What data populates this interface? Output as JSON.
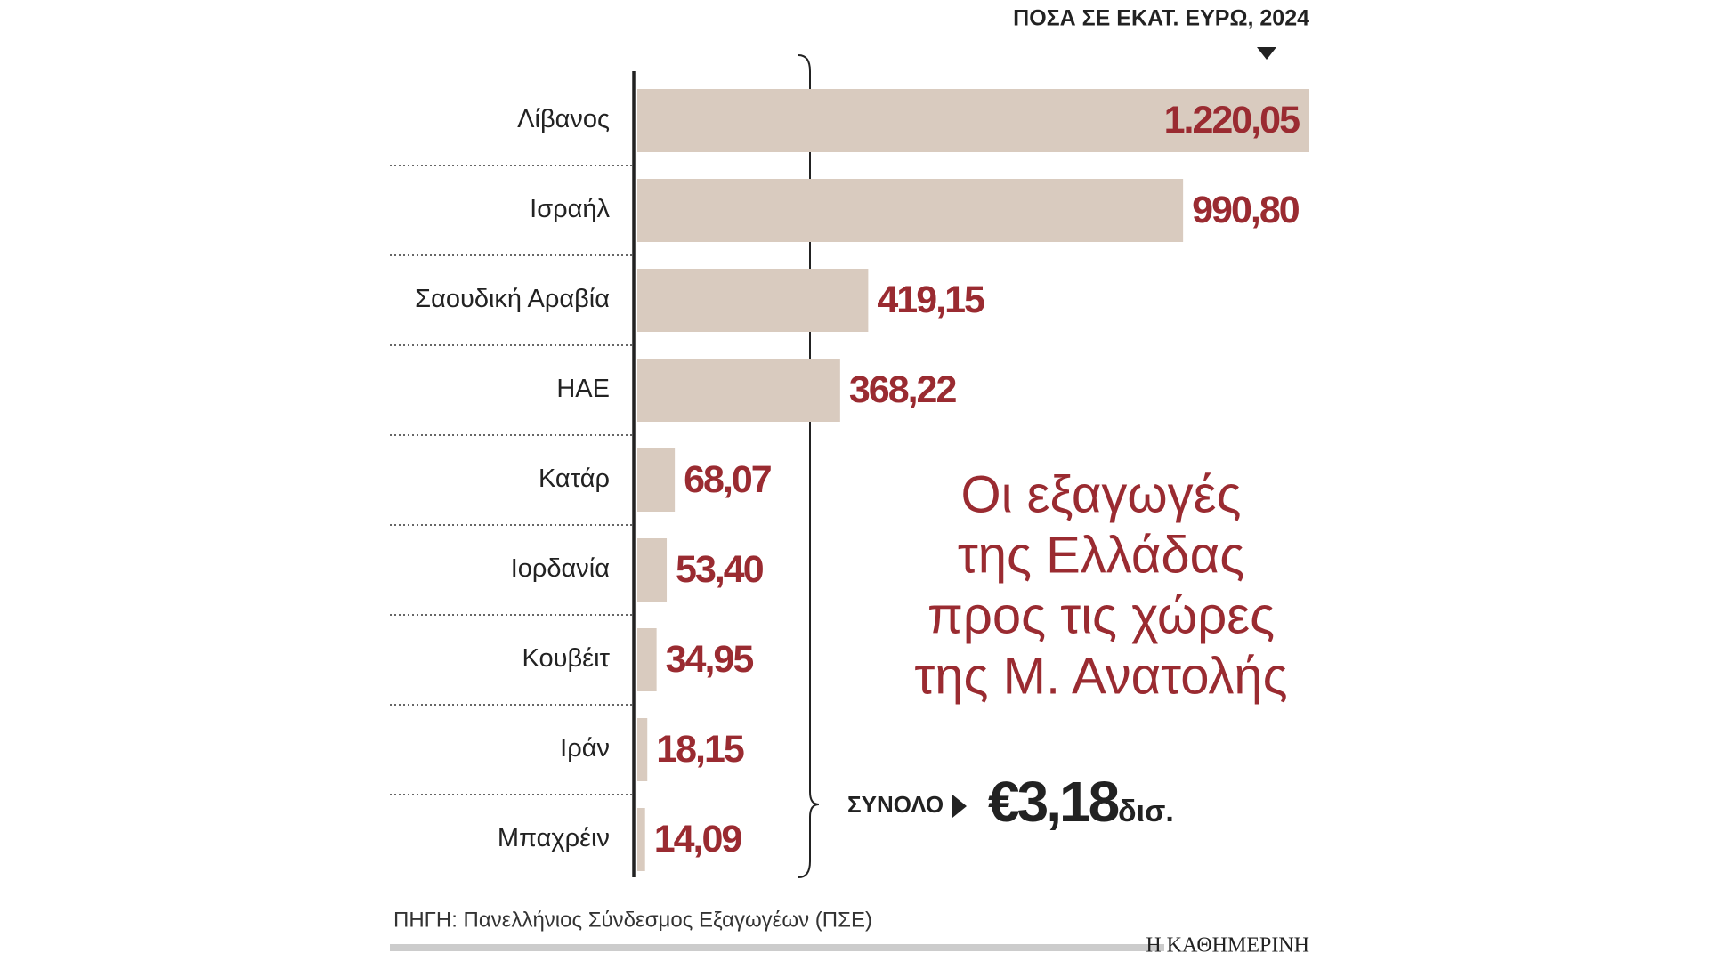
{
  "chart_data": {
    "type": "hbar",
    "title": [
      "Οι εξαγωγές",
      "της Ελλάδας",
      "προς τις χώρες",
      "της Μ. Ανατολής"
    ],
    "unit_label": "ΠΟΣΑ ΣΕ ΕΚΑΤ. ΕΥΡΩ, 2024",
    "categories": [
      "Λίβανος",
      "Ισραήλ",
      "Σαουδική Αραβία",
      "ΗΑΕ",
      "Κατάρ",
      "Ιορδανία",
      "Κουβέιτ",
      "Ιράν",
      "Μπαχρέιν"
    ],
    "values": [
      1220.05,
      990.8,
      419.15,
      368.22,
      68.07,
      53.4,
      34.95,
      18.15,
      14.09
    ],
    "value_labels": [
      "1.220,05",
      "990,80",
      "419,15",
      "368,22",
      "68,07",
      "53,40",
      "34,95",
      "18,15",
      "14,09"
    ],
    "color": "#d9cbbf",
    "label_color": "#9a2b31",
    "xlim": [
      0,
      1220.05
    ],
    "total": {
      "label": "ΣΥΝΟΛΟ",
      "amount": "€3,18",
      "unit": "δισ."
    },
    "source": "ΠΗΓΗ: Πανελλήνιος Σύνδεσμος Εξαγωγέων (ΠΣΕ)",
    "brand": "Η ΚΑΘΗΜΕΡΙΝΗ"
  }
}
